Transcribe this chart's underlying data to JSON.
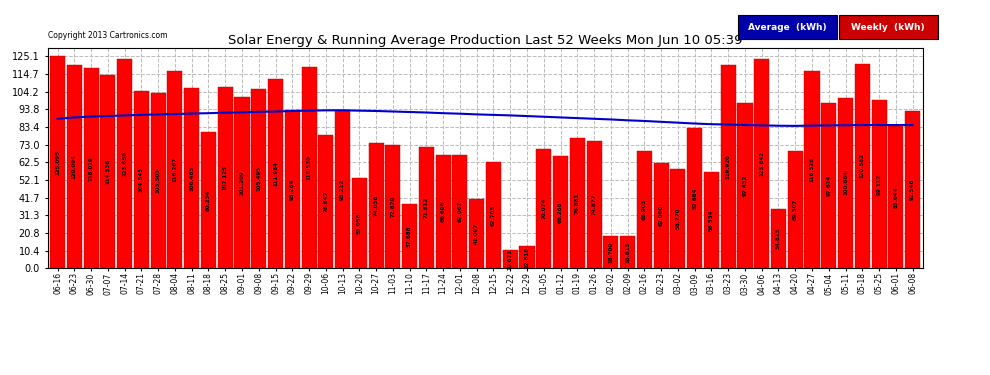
{
  "title": "Solar Energy & Running Average Production Last 52 Weeks Mon Jun 10 05:39",
  "copyright": "Copyright 2013 Cartronics.com",
  "bar_color": "#FF0000",
  "avg_line_color": "#0000CC",
  "background_color": "#FFFFFF",
  "legend_avg_bg": "#0000AA",
  "legend_weekly_bg": "#CC0000",
  "yticks": [
    0.0,
    10.4,
    20.8,
    31.3,
    41.7,
    52.1,
    62.5,
    73.0,
    83.4,
    93.8,
    104.2,
    114.7,
    125.1
  ],
  "categories": [
    "06-16",
    "06-23",
    "06-30",
    "07-07",
    "07-14",
    "07-21",
    "07-28",
    "08-04",
    "08-11",
    "08-18",
    "08-25",
    "09-01",
    "09-08",
    "09-15",
    "09-22",
    "09-29",
    "10-06",
    "10-13",
    "10-20",
    "10-27",
    "11-03",
    "11-10",
    "11-17",
    "11-24",
    "12-01",
    "12-08",
    "12-15",
    "12-22",
    "12-29",
    "01-05",
    "01-12",
    "01-19",
    "01-26",
    "02-02",
    "02-09",
    "02-16",
    "02-23",
    "03-02",
    "03-09",
    "03-16",
    "03-23",
    "03-30",
    "04-06",
    "04-13",
    "04-20",
    "04-27",
    "05-04",
    "05-11",
    "05-18",
    "05-25",
    "06-01",
    "06-08"
  ],
  "weekly_values": [
    125.095,
    120.094,
    118.019,
    114.336,
    123.65,
    104.545,
    103.503,
    116.267,
    106.465,
    80.234,
    107.125,
    101.209,
    105.493,
    111.984,
    93.264,
    118.53,
    78.647,
    93.212,
    53.056,
    74.038,
    72.82,
    37.688,
    71.812,
    66.696,
    67.067,
    41.097,
    62.705,
    10.671,
    12.818,
    70.074,
    66.288,
    76.881,
    74.877,
    18.7,
    18.813,
    68.903,
    62.06,
    58.77,
    82.684,
    56.534,
    119.92,
    97.432,
    123.642,
    34.813,
    69.307,
    116.526,
    97.614,
    100.664,
    120.582,
    99.112,
    83.644,
    92.546
  ],
  "avg_values": [
    88.2,
    89.0,
    89.5,
    89.8,
    90.2,
    90.5,
    90.8,
    91.0,
    91.3,
    91.5,
    91.8,
    92.0,
    92.3,
    92.5,
    92.8,
    93.0,
    93.2,
    93.2,
    93.0,
    92.8,
    92.5,
    92.2,
    91.9,
    91.5,
    91.2,
    90.8,
    90.5,
    90.2,
    89.8,
    89.4,
    89.0,
    88.6,
    88.2,
    87.8,
    87.3,
    86.9,
    86.4,
    85.9,
    85.4,
    85.0,
    84.8,
    84.5,
    84.3,
    84.1,
    84.0,
    84.2,
    84.3,
    84.4,
    84.5,
    84.5,
    84.5,
    84.5
  ]
}
